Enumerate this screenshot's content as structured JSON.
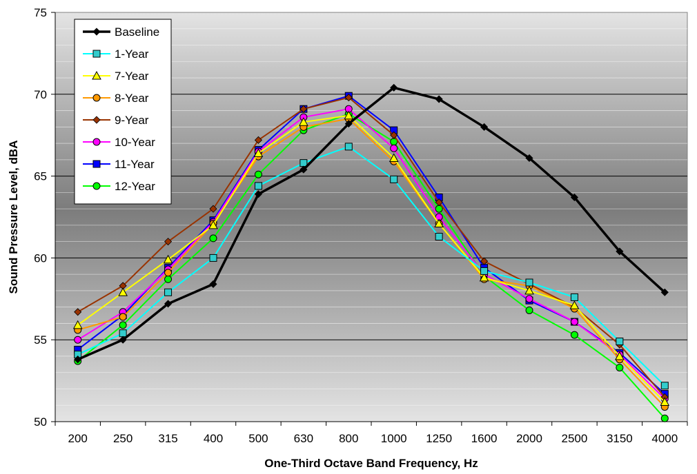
{
  "chart_data": {
    "type": "line",
    "title": "",
    "xlabel": "One-Third Octave Band Frequency, Hz",
    "ylabel": "Sound Pressure Level, dBA",
    "ylim": [
      50,
      75
    ],
    "y_ticks": [
      50,
      55,
      60,
      65,
      70,
      75
    ],
    "y_minor_step": 1,
    "grid": true,
    "legend_position": "top-left",
    "categories": [
      "200",
      "250",
      "315",
      "400",
      "500",
      "630",
      "800",
      "1000",
      "1250",
      "1600",
      "2000",
      "2500",
      "3150",
      "4000"
    ],
    "series": [
      {
        "name": "Baseline",
        "color": "#000000",
        "marker": "diamond",
        "marker_fill": "#000000",
        "line_width": 3.5,
        "values": [
          53.8,
          55.0,
          57.2,
          58.4,
          63.9,
          65.4,
          68.2,
          70.4,
          69.7,
          68.0,
          66.1,
          63.7,
          60.4,
          57.9
        ]
      },
      {
        "name": "1-Year",
        "color": "#00ffff",
        "marker": "square",
        "marker_fill": "#33cccc",
        "line_width": 2,
        "values": [
          54.1,
          55.4,
          57.9,
          60.0,
          64.4,
          65.8,
          66.8,
          64.8,
          61.3,
          59.2,
          58.5,
          57.6,
          54.9,
          52.2
        ]
      },
      {
        "name": "7-Year",
        "color": "#ffff00",
        "marker": "triangle",
        "marker_fill": "#ffff00",
        "line_width": 2,
        "values": [
          55.9,
          57.9,
          59.9,
          62.0,
          66.4,
          68.3,
          68.7,
          66.1,
          62.1,
          58.8,
          58.0,
          57.1,
          54.0,
          51.2
        ]
      },
      {
        "name": "8-Year",
        "color": "#ff9900",
        "marker": "circle",
        "marker_fill": "#ff9900",
        "line_width": 2,
        "values": [
          55.6,
          56.4,
          59.1,
          62.1,
          66.2,
          68.0,
          68.5,
          65.9,
          62.1,
          58.7,
          58.3,
          56.9,
          53.8,
          50.9
        ]
      },
      {
        "name": "9-Year",
        "color": "#993300",
        "marker": "diamond",
        "marker_fill": "#993300",
        "line_width": 2,
        "values": [
          56.7,
          58.3,
          61.0,
          63.0,
          67.2,
          69.1,
          69.8,
          67.5,
          63.4,
          59.8,
          58.4,
          57.0,
          54.7,
          51.5
        ]
      },
      {
        "name": "10-Year",
        "color": "#ff00ff",
        "marker": "circle",
        "marker_fill": "#ff00ff",
        "line_width": 2,
        "values": [
          55.0,
          56.7,
          59.3,
          62.2,
          66.5,
          68.6,
          69.1,
          66.7,
          62.5,
          59.0,
          57.5,
          56.1,
          54.1,
          51.4
        ]
      },
      {
        "name": "11-Year",
        "color": "#0000ff",
        "marker": "square",
        "marker_fill": "#0000ff",
        "line_width": 2,
        "values": [
          54.4,
          56.5,
          59.4,
          62.3,
          66.6,
          69.1,
          69.9,
          67.8,
          63.7,
          59.4,
          57.4,
          56.1,
          54.2,
          51.7
        ]
      },
      {
        "name": "12-Year",
        "color": "#00ff00",
        "marker": "circle",
        "marker_fill": "#00ff00",
        "line_width": 2,
        "values": [
          53.7,
          55.9,
          58.7,
          61.2,
          65.1,
          67.8,
          68.8,
          67.1,
          63.0,
          58.9,
          56.8,
          55.3,
          53.3,
          50.2
        ]
      }
    ]
  }
}
